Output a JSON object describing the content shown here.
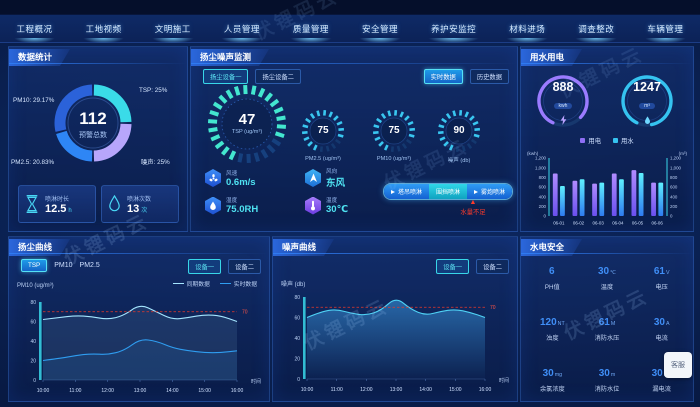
{
  "watermark": {
    "text": "伏锂码云"
  },
  "nav": {
    "tabs": [
      "工程概况",
      "工地视频",
      "文明施工",
      "人员管理",
      "质量管理",
      "安全管理",
      "养护安监控",
      "材料进场",
      "调查整改",
      "车辆管理"
    ]
  },
  "panels": {
    "stats": {
      "title": "数据统计",
      "donut_center_value": "112",
      "donut_center_label": "预警总数",
      "donut_labels": [
        "PM10: 29.17%",
        "TSP: 25%",
        "PM2.5: 20.83%",
        "噪声: 25%"
      ],
      "cards": [
        {
          "icon": "hourglass-icon",
          "label": "喷淋时长",
          "value": "12.5",
          "unit": "h"
        },
        {
          "icon": "water-drop-icon",
          "label": "喷淋次数",
          "value": "13",
          "unit": "次"
        }
      ]
    },
    "dust_noise": {
      "title": "扬尘噪声监测",
      "tabs": [
        "扬尘设备一",
        "扬尘设备二"
      ],
      "mode_buttons": [
        "实时数据",
        "历史数据"
      ],
      "gauges": [
        {
          "value": "47",
          "label": "TSP",
          "unit": "(ug/m³)",
          "max": 60
        },
        {
          "value": "75",
          "label": "PM2.5",
          "unit": "(ug/m³)",
          "max": 100
        },
        {
          "value": "75",
          "label": "PM10",
          "unit": "(ug/m³)",
          "max": 100
        },
        {
          "value": "90",
          "label": "噪声",
          "unit": "(db)",
          "max": 120
        }
      ],
      "env": [
        {
          "icon": "wind-speed-icon",
          "label": "风速",
          "value": "0.6m/s"
        },
        {
          "icon": "wind-direction-icon",
          "label": "风向",
          "value": "东风"
        },
        {
          "icon": "humidity-icon",
          "label": "湿度",
          "value": "75.0RH"
        },
        {
          "icon": "temperature-icon",
          "label": "温度",
          "value": "30℃"
        }
      ],
      "spray_buttons": [
        "塔吊喷淋",
        "围挡喷淋",
        "雾炮喷淋"
      ],
      "alert": "水量不足"
    },
    "water_power": {
      "title": "用水用电",
      "rings": [
        {
          "value": "888",
          "unit": "kwh",
          "icon": "lightning-icon",
          "color": "#9b7bff"
        },
        {
          "value": "1247",
          "unit": "m³",
          "icon": "water-drop-icon",
          "color": "#35c3f0"
        }
      ],
      "legend": [
        "用电",
        "用水"
      ]
    },
    "dust_curve": {
      "title": "扬尘曲线",
      "tabs": [
        "TSP",
        "PM10",
        "PM2.5"
      ],
      "devices": [
        "设备一",
        "设备二"
      ],
      "legend": [
        "同期数据",
        "实时数据"
      ],
      "ylabel": "PM10 (ug/m³)"
    },
    "noise_curve": {
      "title": "噪声曲线",
      "devices": [
        "设备一",
        "设备二"
      ],
      "ylabel": "噪声 (db)"
    },
    "safety": {
      "title": "水电安全",
      "items": [
        {
          "value": "6",
          "unit": "",
          "label": "PH值"
        },
        {
          "value": "30",
          "unit": "℃",
          "label": "温度"
        },
        {
          "value": "61",
          "unit": "V",
          "label": "电压"
        },
        {
          "value": "120",
          "unit": "NT",
          "label": "浊度"
        },
        {
          "value": "61",
          "unit": "M",
          "label": "消防水压"
        },
        {
          "value": "30",
          "unit": "A",
          "label": "电流"
        },
        {
          "value": "30",
          "unit": "mg",
          "label": "余氯浓度"
        },
        {
          "value": "30",
          "unit": "m",
          "label": "消防水位"
        },
        {
          "value": "30",
          "unit": "mA",
          "label": "漏电流"
        }
      ]
    }
  },
  "floating_widget": {
    "label": "客服"
  },
  "chart_data": [
    {
      "type": "pie",
      "title": "预警总数",
      "center_value": 112,
      "labels": [
        "TSP",
        "噪声",
        "PM2.5",
        "PM10"
      ],
      "values": [
        25,
        25,
        20.83,
        29.17
      ],
      "colors": [
        "#3adbe8",
        "#b7a6fb",
        "#2e86f5",
        "#2b62d9"
      ]
    },
    {
      "type": "bar",
      "title": "用水用电",
      "categories": [
        "06-01",
        "06-02",
        "06-03",
        "06-04",
        "06-05",
        "06-06"
      ],
      "series": [
        {
          "name": "用电",
          "color": "#8f6ff5",
          "grad": [
            "#b18cff",
            "#6a50ee"
          ],
          "values": [
            880,
            730,
            670,
            880,
            950,
            690
          ]
        },
        {
          "name": "用水",
          "color": "#35c3f0",
          "grad": [
            "#5ef0ff",
            "#2f7bf0"
          ],
          "values": [
            620,
            760,
            690,
            760,
            890,
            690
          ]
        }
      ],
      "ylim": [
        0,
        1200
      ],
      "ytick_step": 200,
      "ylabel_left": "(kwh)",
      "ylabel_right": "(m³)"
    },
    {
      "type": "line",
      "title": "扬尘曲线",
      "x_ticks": [
        "10:00",
        "11:00",
        "12:00",
        "13:00",
        "14:00",
        "15:00",
        "16:00"
      ],
      "ylim": [
        0,
        80
      ],
      "ytick_step": 20,
      "threshold": 70,
      "xlabel": "时间",
      "series": [
        {
          "name": "同期数据",
          "color": "#a5e6ff",
          "values": [
            62,
            64,
            66,
            65,
            62,
            66,
            78,
            70,
            62,
            64,
            67,
            66,
            60
          ]
        },
        {
          "name": "实时数据",
          "color": "#2f9df0",
          "values": [
            20,
            22,
            25,
            27,
            26,
            30,
            42,
            40,
            33,
            30,
            28,
            28,
            30
          ]
        }
      ]
    },
    {
      "type": "area",
      "title": "噪声曲线",
      "x_ticks": [
        "10:00",
        "11:00",
        "12:00",
        "13:00",
        "14:00",
        "15:00",
        "16:00"
      ],
      "ylim": [
        0,
        80
      ],
      "ytick_step": 20,
      "threshold": 70,
      "xlabel": "时间",
      "series": [
        {
          "name": "噪声",
          "color": "#4fd2f5",
          "values": [
            60,
            66,
            68,
            64,
            62,
            67,
            80,
            68,
            62,
            66,
            68,
            65,
            60
          ]
        }
      ]
    }
  ]
}
